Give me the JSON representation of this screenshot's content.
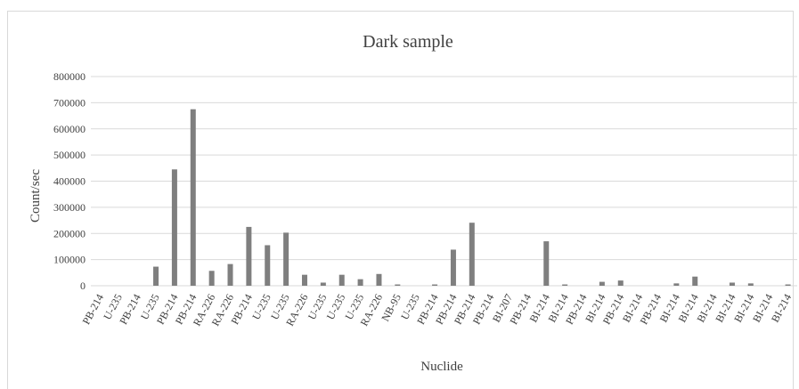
{
  "chart_data": {
    "type": "bar",
    "title": "Dark sample",
    "xlabel": "Nuclide",
    "ylabel": "Count/sec",
    "ylim": [
      0,
      800000
    ],
    "yticks": [
      0,
      100000,
      200000,
      300000,
      400000,
      500000,
      600000,
      700000,
      800000
    ],
    "ytick_labels": [
      "0",
      "100000",
      "200000",
      "300000",
      "400000",
      "500000",
      "600000",
      "700000",
      "800000"
    ],
    "grid": true,
    "bar_color": "#7f7f7f",
    "categories": [
      "PB-214",
      "U-235",
      "PB-214",
      "U-235",
      "PB-214",
      "PB-214",
      "RA-226",
      "RA-226",
      "PB-214",
      "U-235",
      "U-235",
      "RA-226",
      "U-235",
      "U-235",
      "U-235",
      "RA-226",
      "NB-95",
      "U-235",
      "PB-214",
      "PB-214",
      "PB-214",
      "PB-214",
      "BI-207",
      "PB-214",
      "BI-214",
      "BI-214",
      "PB-214",
      "BI-214",
      "PB-214",
      "BI-214",
      "PB-214",
      "BI-214",
      "BI-214",
      "BI-214",
      "BI-214",
      "BI-214",
      "BI-214",
      "BI-214"
    ],
    "values": [
      0,
      0,
      0,
      73000,
      445000,
      675000,
      57000,
      83000,
      225000,
      155000,
      203000,
      42000,
      12000,
      42000,
      25000,
      45000,
      5000,
      0,
      5000,
      138000,
      241000,
      0,
      0,
      0,
      170000,
      5000,
      0,
      15000,
      20000,
      0,
      0,
      9000,
      35000,
      0,
      12000,
      9000,
      0,
      5000
    ]
  }
}
